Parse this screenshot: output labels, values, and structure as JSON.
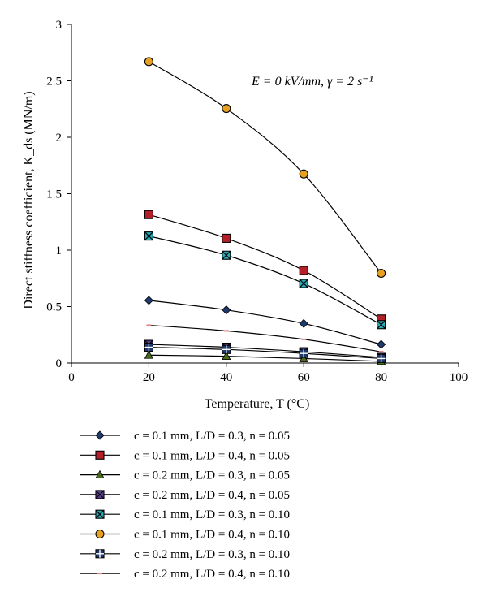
{
  "chart_data": {
    "type": "line",
    "title": "",
    "annotation": "E = 0 kV/mm, γ = 2 s⁻¹",
    "xlabel": "Temperature, T (°C)",
    "ylabel": "Direct stiffness coefficient, K_ds (MN/m)",
    "xlim": [
      0,
      100
    ],
    "ylim": [
      0,
      3
    ],
    "xticks": [
      "0",
      "20",
      "40",
      "60",
      "80",
      "100"
    ],
    "yticks": [
      "0",
      "0.5",
      "1",
      "1.5",
      "2",
      "2.5",
      "3"
    ],
    "grid": false,
    "legend_position": "bottom",
    "x": [
      20,
      40,
      60,
      80
    ],
    "series": [
      {
        "name": "c = 0.1 mm, L/D = 0.3, n = 0.05",
        "marker": "diamond",
        "color": "#1f3a6e",
        "values": [
          0.555,
          0.47,
          0.35,
          0.165
        ]
      },
      {
        "name": "c = 0.1 mm, L/D = 0.4, n = 0.05",
        "marker": "square",
        "color": "#b3202a",
        "values": [
          1.315,
          1.105,
          0.82,
          0.39
        ]
      },
      {
        "name": "c = 0.2 mm, L/D = 0.3, n = 0.05",
        "marker": "triangle",
        "color": "#4a6b1a",
        "values": [
          0.07,
          0.06,
          0.04,
          0.015
        ]
      },
      {
        "name": "c = 0.2 mm, L/D = 0.4, n = 0.05",
        "marker": "xsquare",
        "color": "#5a3d8a",
        "values": [
          0.165,
          0.14,
          0.1,
          0.05
        ]
      },
      {
        "name": "c = 0.1 mm, L/D = 0.3, n = 0.10",
        "marker": "asterisk",
        "color": "#2aa9b5",
        "values": [
          1.125,
          0.955,
          0.705,
          0.34
        ]
      },
      {
        "name": "c = 0.1 mm, L/D = 0.4, n = 0.10",
        "marker": "circle",
        "color": "#e8a020",
        "values": [
          2.67,
          2.255,
          1.675,
          0.795
        ]
      },
      {
        "name": "c = 0.2 mm, L/D = 0.3, n = 0.10",
        "marker": "plus",
        "color": "#1f3a6e",
        "values": [
          0.14,
          0.12,
          0.085,
          0.04
        ]
      },
      {
        "name": "c = 0.2 mm, L/D = 0.4, n = 0.10",
        "marker": "dash",
        "color": "#e58080",
        "values": [
          0.335,
          0.285,
          0.21,
          0.1
        ]
      }
    ]
  }
}
